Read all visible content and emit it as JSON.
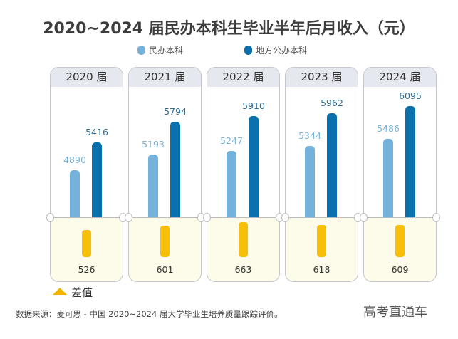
{
  "chart_data": {
    "type": "bar",
    "title": "2020~2024 届民办本科生毕业半年后月收入（元）",
    "categories": [
      "2020 届",
      "2021 届",
      "2022 届",
      "2023 届",
      "2024 届"
    ],
    "series": [
      {
        "name": "民办本科",
        "values": [
          4890,
          5193,
          5247,
          5344,
          5486
        ],
        "color": "#74b1db"
      },
      {
        "name": "地方公办本科",
        "values": [
          5416,
          5794,
          5910,
          5962,
          6095
        ],
        "color": "#0a70ae"
      }
    ],
    "difference": {
      "name": "差值",
      "values": [
        526,
        601,
        663,
        618,
        609
      ],
      "color": "#f8bf0a"
    },
    "legend_placement": "top"
  },
  "source": "数据来源：麦可思 - 中国 2020~2024 届大学毕业生培养质量跟踪评价。",
  "watermark": "高考直通车"
}
